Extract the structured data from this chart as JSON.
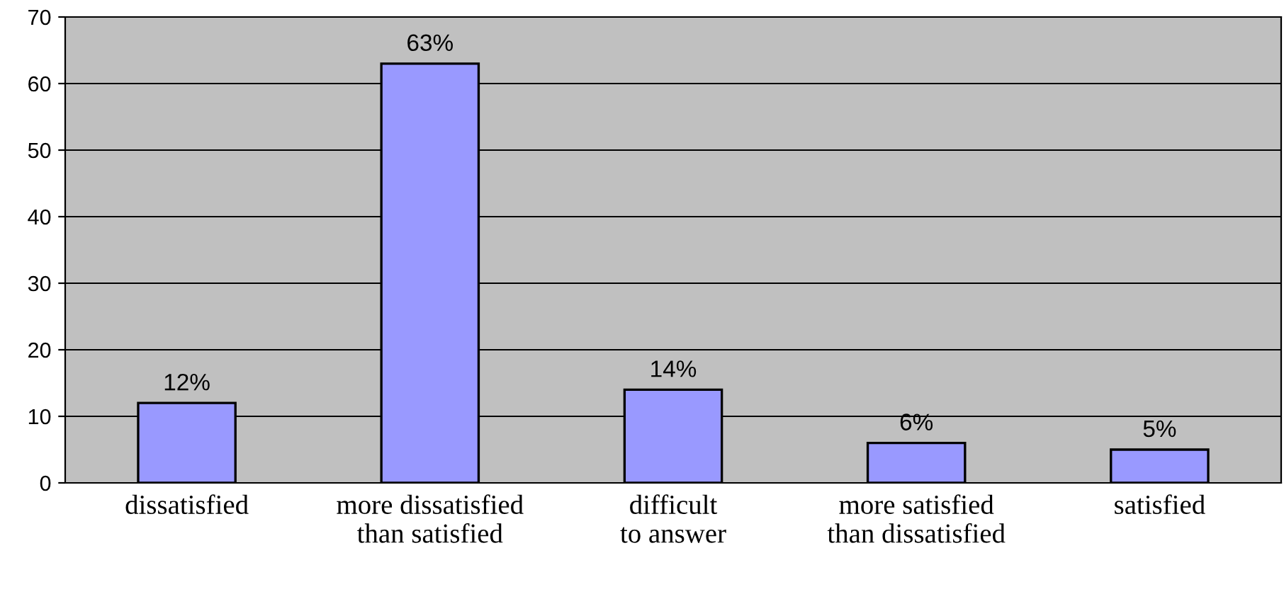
{
  "chart_data": {
    "type": "bar",
    "categories": [
      "dissatisfied",
      "more dissatisfied\nthan satisfied",
      "difficult\nto answer",
      "more satisfied\nthan dissatisfied",
      "satisfied"
    ],
    "values": [
      12,
      63,
      14,
      6,
      5
    ],
    "value_labels": [
      "12%",
      "63%",
      "14%",
      "6%",
      "5%"
    ],
    "color": "#9999ff",
    "ylim": [
      0,
      70
    ],
    "yticks": [
      0,
      10,
      20,
      30,
      40,
      50,
      60,
      70
    ],
    "grid": "y",
    "legend": false
  }
}
